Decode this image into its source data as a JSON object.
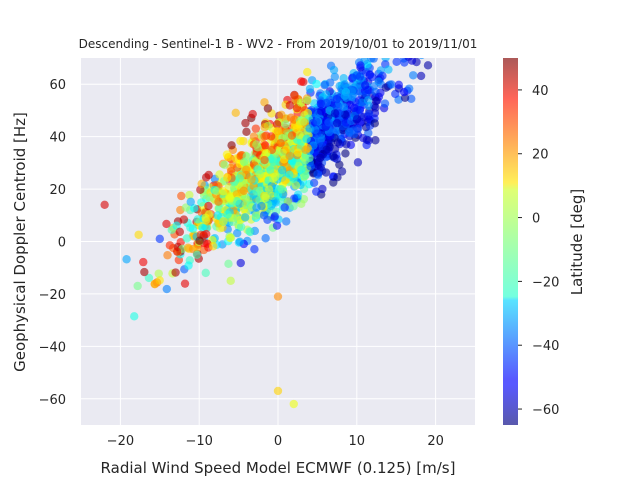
{
  "chart_data": {
    "type": "scatter",
    "title": "Descending - Sentinel-1 B - WV2 - From 2019/10/01 to 2019/11/01",
    "xlabel": "Radial Wind Speed Model ECMWF (0.125) [m/s]",
    "ylabel": "Geophysical Doppler Centroid [Hz]",
    "xlim": [
      -25,
      25
    ],
    "ylim": [
      -70,
      70
    ],
    "xticks": [
      "−20",
      "−10",
      "0",
      "10",
      "20"
    ],
    "xtick_values": [
      -20,
      -10,
      0,
      10,
      20
    ],
    "yticks": [
      "−60",
      "−40",
      "−20",
      "0",
      "20",
      "40",
      "60"
    ],
    "ytick_values": [
      -60,
      -40,
      -20,
      0,
      20,
      40,
      60
    ],
    "grid": true,
    "background": "#eaeaf2",
    "colorbar": {
      "label": "Latitude [deg]",
      "range": [
        -65,
        50
      ],
      "ticks": [
        "−60",
        "−40",
        "−20",
        "0",
        "20",
        "40"
      ],
      "tick_values": [
        -60,
        -40,
        -20,
        0,
        20,
        40
      ],
      "colormap": "jet"
    },
    "notable_points": [
      {
        "x": -22,
        "y": 14,
        "lat": 40
      },
      {
        "x": -15,
        "y": 1,
        "lat": -45
      },
      {
        "x": -6,
        "y": -15,
        "lat": 0
      },
      {
        "x": 0,
        "y": -21,
        "lat": 20
      },
      {
        "x": 0,
        "y": -57,
        "lat": 12
      },
      {
        "x": 2,
        "y": -62,
        "lat": 5
      },
      {
        "x": 16,
        "y": 57,
        "lat": -50
      },
      {
        "x": 17,
        "y": 69,
        "lat": -55
      }
    ],
    "point_cloud": {
      "description_free": true,
      "trend": {
        "slope": 2.3,
        "intercept": 30
      },
      "x_range": [
        -18,
        18
      ],
      "count": 1500
    }
  }
}
